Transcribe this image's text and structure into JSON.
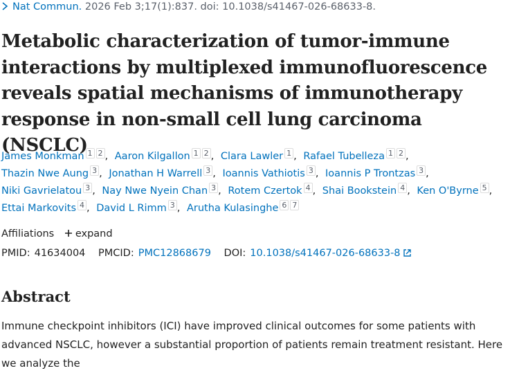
{
  "citation": {
    "journal": "Nat Commun.",
    "details": "2026 Feb 3;17(1):837. doi: 10.1038/s41467-026-68633-8."
  },
  "title": "Metabolic characterization of tumor-immune interactions by multiplexed immunofluorescence reveals spatial mechanisms of immunotherapy response in non-small cell lung carcinoma (NSCLC)",
  "author_separator": ",",
  "authors": [
    {
      "name": "James Monkman",
      "affiliations": [
        "1",
        "2"
      ]
    },
    {
      "name": "Aaron Kilgallon",
      "affiliations": [
        "1",
        "2"
      ]
    },
    {
      "name": "Clara Lawler",
      "affiliations": [
        "1"
      ]
    },
    {
      "name": "Rafael Tubelleza",
      "affiliations": [
        "1",
        "2"
      ]
    },
    {
      "name": "Thazin Nwe Aung",
      "affiliations": [
        "3"
      ]
    },
    {
      "name": "Jonathan H Warrell",
      "affiliations": [
        "3"
      ]
    },
    {
      "name": "Ioannis Vathiotis",
      "affiliations": [
        "3"
      ]
    },
    {
      "name": "Ioannis P Trontzas",
      "affiliations": [
        "3"
      ]
    },
    {
      "name": "Niki Gavrielatou",
      "affiliations": [
        "3"
      ]
    },
    {
      "name": "Nay Nwe Nyein Chan",
      "affiliations": [
        "3"
      ]
    },
    {
      "name": "Rotem Czertok",
      "affiliations": [
        "4"
      ]
    },
    {
      "name": "Shai Bookstein",
      "affiliations": [
        "4"
      ]
    },
    {
      "name": "Ken O'Byrne",
      "affiliations": [
        "5"
      ]
    },
    {
      "name": "Ettai Markovits",
      "affiliations": [
        "4"
      ]
    },
    {
      "name": "David L Rimm",
      "affiliations": [
        "3"
      ]
    },
    {
      "name": "Arutha Kulasinghe",
      "affiliations": [
        "6",
        "7"
      ]
    }
  ],
  "affiliations": {
    "label": "Affiliations",
    "toggle": "expand"
  },
  "identifiers": {
    "pmid": {
      "label": "PMID:",
      "value": "41634004"
    },
    "pmcid": {
      "label": "PMCID:",
      "value": "PMC12868679"
    },
    "doi": {
      "label": "DOI:",
      "value": "10.1038/s41467-026-68633-8"
    }
  },
  "abstract": {
    "heading": "Abstract",
    "text": "Immune checkpoint inhibitors (ICI) have improved clinical outcomes for some patients with advanced NSCLC, however a substantial proportion of patients remain treatment resistant. Here we analyze the"
  }
}
